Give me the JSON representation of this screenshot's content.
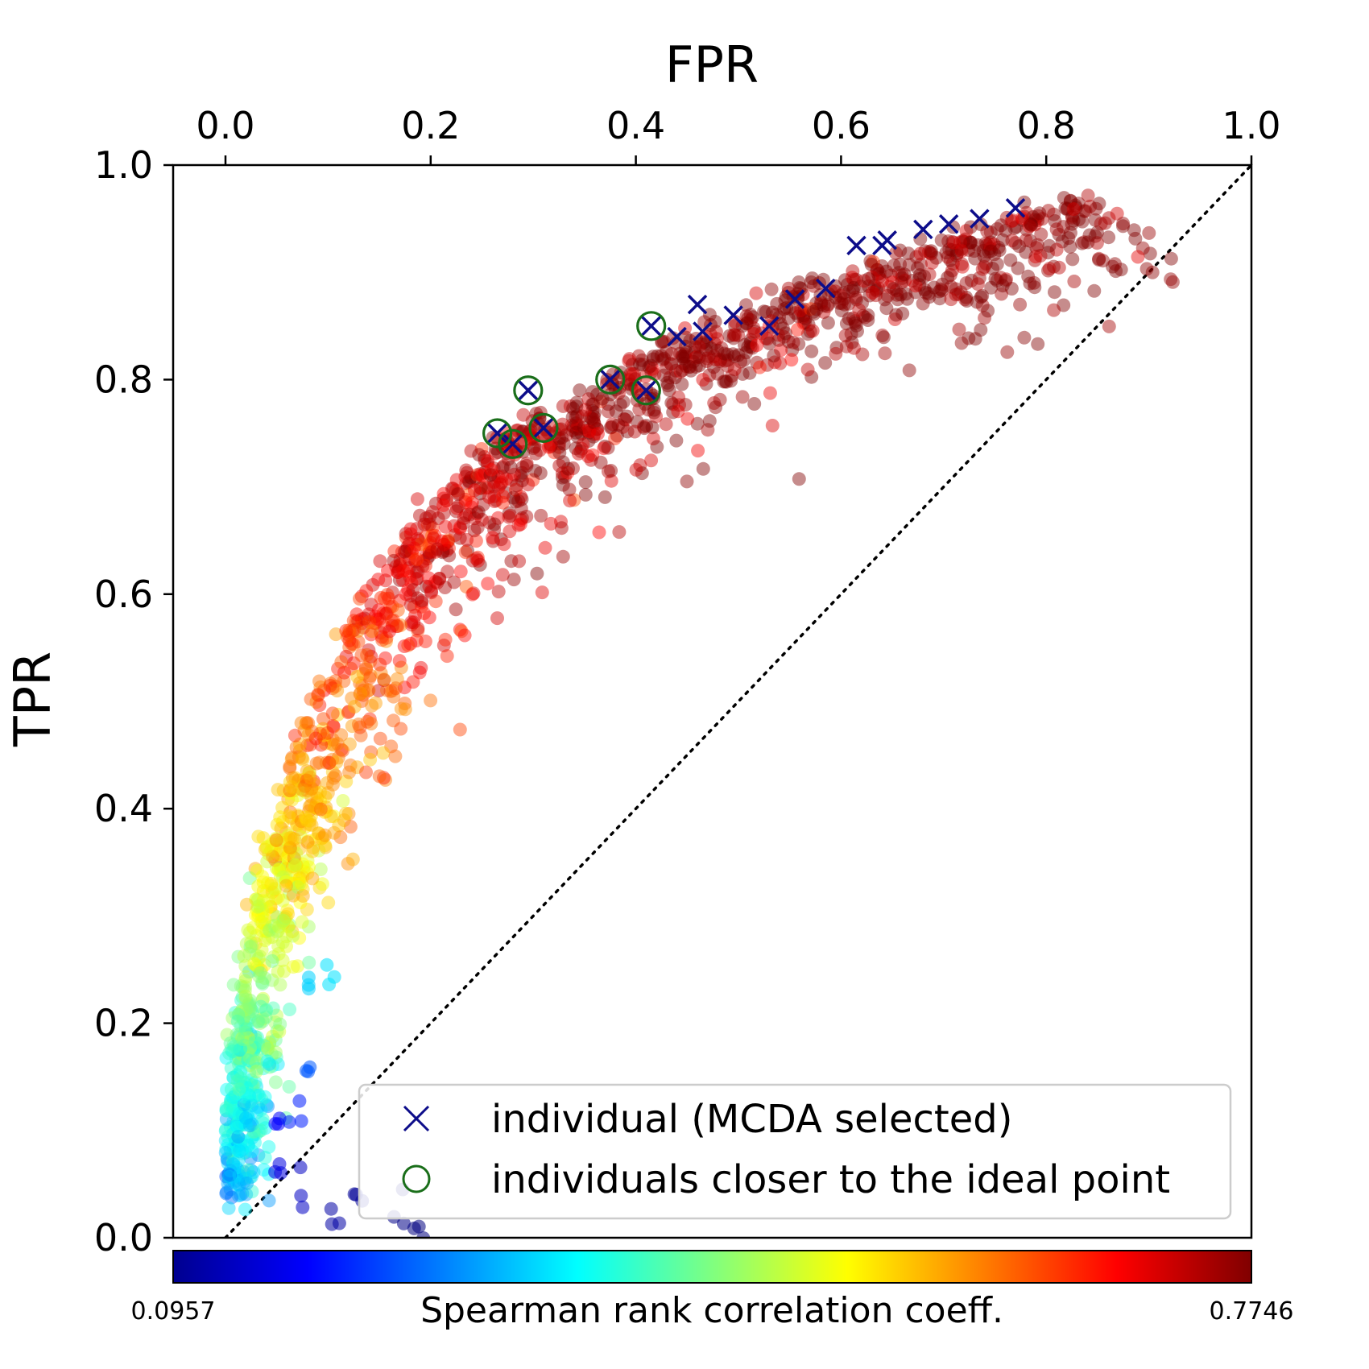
{
  "chart_data": {
    "type": "scatter",
    "title": "",
    "xlabel": "FPR",
    "ylabel": "TPR",
    "xlim": [
      -0.05,
      1.0
    ],
    "ylim": [
      0.0,
      1.0
    ],
    "x_ticks": [
      "0.0",
      "0.2",
      "0.4",
      "0.6",
      "0.8",
      "1.0"
    ],
    "y_ticks": [
      "0.0",
      "0.2",
      "0.4",
      "0.6",
      "0.8",
      "1.0"
    ],
    "x_axis_position": "top",
    "grid": false,
    "reference_line": {
      "style": "dotted",
      "from": [
        0.0,
        0.0
      ],
      "to": [
        1.0,
        1.0
      ]
    },
    "colorbar": {
      "label": "Spearman rank correlation coeff.",
      "min_label": "0.0957",
      "max_label": "0.7746",
      "min": 0.0957,
      "max": 0.7746,
      "colormap": "jet",
      "placement": "bottom"
    },
    "population": {
      "name": "individuals",
      "description": "approx. 2000 points colored by Spearman coefficient",
      "curve": [
        [
          0.0,
          0.05,
          0.3
        ],
        [
          0.0,
          0.1,
          0.33
        ],
        [
          0.005,
          0.15,
          0.38
        ],
        [
          0.01,
          0.2,
          0.42
        ],
        [
          0.02,
          0.27,
          0.47
        ],
        [
          0.035,
          0.34,
          0.52
        ],
        [
          0.05,
          0.4,
          0.56
        ],
        [
          0.07,
          0.46,
          0.6
        ],
        [
          0.1,
          0.53,
          0.63
        ],
        [
          0.13,
          0.59,
          0.67
        ],
        [
          0.17,
          0.65,
          0.7
        ],
        [
          0.21,
          0.7,
          0.72
        ],
        [
          0.26,
          0.74,
          0.74
        ],
        [
          0.31,
          0.77,
          0.75
        ],
        [
          0.37,
          0.8,
          0.76
        ],
        [
          0.44,
          0.84,
          0.765
        ],
        [
          0.52,
          0.87,
          0.77
        ],
        [
          0.6,
          0.9,
          0.772
        ],
        [
          0.68,
          0.92,
          0.773
        ],
        [
          0.76,
          0.95,
          0.774
        ],
        [
          0.85,
          0.97,
          0.7746
        ]
      ],
      "low_tail": [
        [
          0.05,
          0.06,
          0.16
        ],
        [
          0.05,
          0.1,
          0.18
        ],
        [
          0.07,
          0.04,
          0.14
        ],
        [
          0.07,
          0.12,
          0.2
        ],
        [
          0.11,
          0.03,
          0.12
        ],
        [
          0.13,
          0.03,
          0.11
        ],
        [
          0.17,
          0.02,
          0.1
        ],
        [
          0.19,
          0.015,
          0.0957
        ],
        [
          0.08,
          0.24,
          0.32
        ],
        [
          0.1,
          0.24,
          0.33
        ],
        [
          0.08,
          0.16,
          0.24
        ]
      ]
    },
    "series": [
      {
        "name": "individual (MCDA selected)",
        "marker": "x",
        "color": "#0d0d8a",
        "points": [
          [
            0.265,
            0.75
          ],
          [
            0.28,
            0.74
          ],
          [
            0.295,
            0.79
          ],
          [
            0.31,
            0.755
          ],
          [
            0.375,
            0.8
          ],
          [
            0.41,
            0.79
          ],
          [
            0.415,
            0.85
          ],
          [
            0.44,
            0.84
          ],
          [
            0.46,
            0.87
          ],
          [
            0.465,
            0.845
          ],
          [
            0.495,
            0.86
          ],
          [
            0.53,
            0.85
          ],
          [
            0.555,
            0.875
          ],
          [
            0.585,
            0.885
          ],
          [
            0.615,
            0.925
          ],
          [
            0.64,
            0.925
          ],
          [
            0.645,
            0.93
          ],
          [
            0.68,
            0.94
          ],
          [
            0.705,
            0.945
          ],
          [
            0.735,
            0.95
          ],
          [
            0.77,
            0.96
          ]
        ]
      },
      {
        "name": "individuals closer to the ideal point",
        "marker": "o",
        "color": "#1a6e1a",
        "points": [
          [
            0.265,
            0.75
          ],
          [
            0.28,
            0.74
          ],
          [
            0.295,
            0.79
          ],
          [
            0.31,
            0.755
          ],
          [
            0.375,
            0.8
          ],
          [
            0.41,
            0.79
          ],
          [
            0.415,
            0.85
          ]
        ]
      }
    ],
    "legend": {
      "placement": "lower-right",
      "entries": [
        "individual (MCDA selected)",
        "individuals closer to the ideal point"
      ]
    }
  }
}
